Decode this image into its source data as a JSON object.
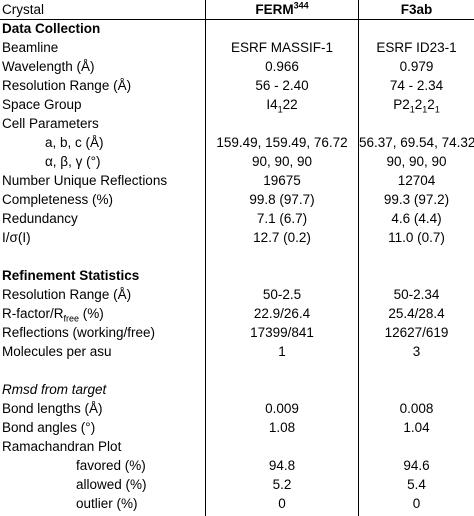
{
  "table": {
    "header": {
      "label": "Crystal",
      "columns": [
        [
          {
            "text": "FERM"
          },
          {
            "sup": "344"
          }
        ],
        "F3ab"
      ]
    },
    "rows": [
      {
        "label": "Data Collection",
        "style": "section"
      },
      {
        "label": "Beamline",
        "values": [
          "ESRF MASSIF-1",
          "ESRF ID23-1"
        ]
      },
      {
        "label": "Wavelength (Å)",
        "values": [
          "0.966",
          "0.979"
        ]
      },
      {
        "label": "Resolution Range (Å)",
        "values": [
          "56 - 2.40",
          "74 - 2.34"
        ]
      },
      {
        "label": "Space Group",
        "values": [
          [
            {
              "text": "I4"
            },
            {
              "sub": "1"
            },
            {
              "text": "22"
            }
          ],
          [
            {
              "text": "P2"
            },
            {
              "sub": "1"
            },
            {
              "text": "2"
            },
            {
              "sub": "1"
            },
            {
              "text": "2"
            },
            {
              "sub": "1"
            }
          ]
        ]
      },
      {
        "label": "Cell Parameters"
      },
      {
        "label": "a, b, c (Å)",
        "style": "indent1",
        "values": [
          "159.49, 159.49, 76.72",
          "56.37, 69.54, 74.32"
        ]
      },
      {
        "label": "α, β, γ (°)",
        "style": "indent1",
        "values": [
          "90, 90, 90",
          "90, 90, 90"
        ]
      },
      {
        "label": "Number Unique Reflections",
        "values": [
          "19675",
          "12704"
        ]
      },
      {
        "label": "Completeness (%)",
        "values": [
          "99.8 (97.7)",
          "99.3 (97.2)"
        ]
      },
      {
        "label": "Redundancy",
        "values": [
          "7.1 (6.7)",
          "4.6 (4.4)"
        ]
      },
      {
        "label": "I/σ(I)",
        "values": [
          "12.7 (0.2)",
          "11.0 (0.7)"
        ]
      },
      {
        "label": "Refinement Statistics",
        "style": "section",
        "gap_before": true
      },
      {
        "label": "Resolution Range (Å)",
        "values": [
          "50-2.5",
          "50-2.34"
        ]
      },
      {
        "label": [
          {
            "text": "R-factor/R"
          },
          {
            "sub": "free"
          },
          {
            "text": " (%)"
          }
        ],
        "values": [
          "22.9/26.4",
          "25.4/28.4"
        ]
      },
      {
        "label": "Reflections (working/free)",
        "values": [
          "17399/841",
          "12627/619"
        ]
      },
      {
        "label": "Molecules per asu",
        "values": [
          "1",
          "3"
        ]
      },
      {
        "label": "Rmsd from target",
        "style": "italic",
        "gap_before": true
      },
      {
        "label": "Bond lengths (Å)",
        "values": [
          "0.009",
          "0.008"
        ]
      },
      {
        "label": "Bond angles (°)",
        "values": [
          "1.08",
          "1.04"
        ]
      },
      {
        "label": "Ramachandran Plot"
      },
      {
        "label": "favored (%)",
        "style": "indent2",
        "values": [
          "94.8",
          "94.6"
        ]
      },
      {
        "label": "allowed (%)",
        "style": "indent2",
        "values": [
          "5.2",
          "5.4"
        ]
      },
      {
        "label": "outlier (%)",
        "style": "indent2",
        "values": [
          "0",
          "0"
        ]
      }
    ]
  }
}
